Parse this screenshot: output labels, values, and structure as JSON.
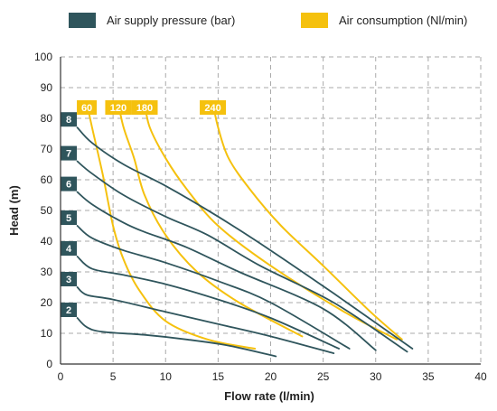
{
  "colors": {
    "pressure": "#2f555c",
    "consumption": "#f5c10e",
    "grid": "#a9a9a9",
    "axis": "#333333",
    "text": "#222222"
  },
  "legend": [
    {
      "label": "Air supply pressure (bar)",
      "series": "pressure"
    },
    {
      "label": "Air consumption (Nl/min)",
      "series": "consumption"
    }
  ],
  "chart_data": {
    "type": "line",
    "xlabel": "Flow rate (l/min)",
    "ylabel": "Head (m)",
    "xlim": [
      0,
      40
    ],
    "ylim": [
      0,
      100
    ],
    "xticks": [
      0,
      5,
      10,
      15,
      20,
      25,
      30,
      35,
      40
    ],
    "yticks": [
      0,
      10,
      20,
      30,
      40,
      50,
      60,
      70,
      80,
      90,
      100
    ],
    "grid": true,
    "legend_position": "top",
    "pressure_series": [
      {
        "name": "2",
        "points": [
          [
            1.6,
            15
          ],
          [
            2.5,
            12
          ],
          [
            4,
            10.5
          ],
          [
            8,
            9.5
          ],
          [
            12,
            8
          ],
          [
            16,
            6
          ],
          [
            20.5,
            2.5
          ]
        ]
      },
      {
        "name": "3",
        "points": [
          [
            1.6,
            25
          ],
          [
            2.5,
            22.5
          ],
          [
            5,
            21
          ],
          [
            10,
            17
          ],
          [
            15,
            13
          ],
          [
            20,
            9
          ],
          [
            26,
            3.5
          ]
        ]
      },
      {
        "name": "4",
        "points": [
          [
            1.6,
            35
          ],
          [
            3,
            31
          ],
          [
            6,
            29
          ],
          [
            10,
            26
          ],
          [
            15,
            21
          ],
          [
            20,
            15
          ],
          [
            26.5,
            5
          ]
        ]
      },
      {
        "name": "5",
        "points": [
          [
            1.6,
            45
          ],
          [
            3,
            41
          ],
          [
            6,
            37
          ],
          [
            10,
            33
          ],
          [
            15,
            27
          ],
          [
            20,
            20
          ],
          [
            27.5,
            5
          ]
        ]
      },
      {
        "name": "6",
        "points": [
          [
            1.6,
            56
          ],
          [
            3,
            52
          ],
          [
            6,
            46
          ],
          [
            8,
            43
          ],
          [
            12,
            38
          ],
          [
            17,
            30
          ],
          [
            25,
            18
          ],
          [
            30,
            4.5
          ]
        ]
      },
      {
        "name": "7",
        "points": [
          [
            1.6,
            66
          ],
          [
            3,
            62
          ],
          [
            6,
            55
          ],
          [
            10,
            48
          ],
          [
            14,
            42
          ],
          [
            19,
            32
          ],
          [
            26,
            20
          ],
          [
            33,
            4
          ]
        ]
      },
      {
        "name": "8",
        "points": [
          [
            1.6,
            77
          ],
          [
            3,
            72
          ],
          [
            6,
            65
          ],
          [
            10,
            58
          ],
          [
            15,
            48
          ],
          [
            20,
            37
          ],
          [
            26,
            23
          ],
          [
            33.5,
            5
          ]
        ]
      }
    ],
    "consumption_series": [
      {
        "name": "60",
        "points": [
          [
            2.5,
            85
          ],
          [
            3,
            77
          ],
          [
            4,
            62
          ],
          [
            5,
            45
          ],
          [
            6,
            34
          ],
          [
            7.5,
            24
          ],
          [
            10,
            14
          ],
          [
            14,
            8
          ],
          [
            18.5,
            5
          ]
        ]
      },
      {
        "name": "120",
        "points": [
          [
            5.5,
            85
          ],
          [
            6,
            77
          ],
          [
            7,
            67
          ],
          [
            8,
            55
          ],
          [
            10,
            42
          ],
          [
            13,
            30
          ],
          [
            17,
            20
          ],
          [
            23,
            9
          ]
        ]
      },
      {
        "name": "180",
        "points": [
          [
            8,
            85
          ],
          [
            8.5,
            77
          ],
          [
            10,
            67
          ],
          [
            12,
            57
          ],
          [
            15,
            45
          ],
          [
            20,
            32
          ],
          [
            27,
            17
          ],
          [
            32,
            8
          ]
        ]
      },
      {
        "name": "240",
        "points": [
          [
            14.5,
            85
          ],
          [
            15,
            77
          ],
          [
            16,
            67
          ],
          [
            18,
            57
          ],
          [
            21,
            45
          ],
          [
            25,
            32
          ],
          [
            29.5,
            17
          ],
          [
            32.5,
            8
          ]
        ]
      }
    ]
  }
}
